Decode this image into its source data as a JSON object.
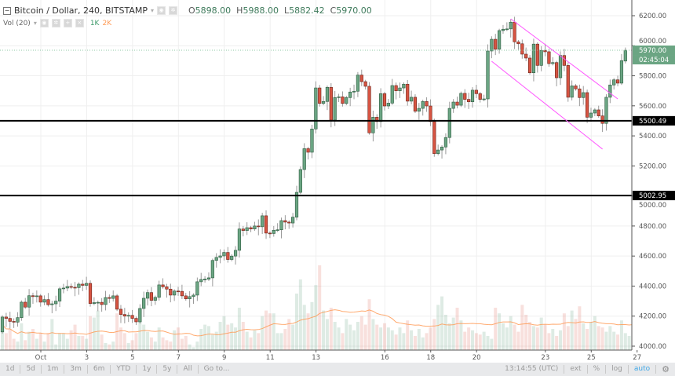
{
  "header": {
    "symbol_title": "Bitcoin / Dollar, 240, BITSTAMP",
    "open_label": "O",
    "open": "5898.00",
    "high_label": "H",
    "high": "5988.00",
    "low_label": "L",
    "low": "5882.42",
    "close_label": "C",
    "close": "5970.00",
    "volume_title": "Vol (20)",
    "volume_value": "1K",
    "volume_ma_value": "2K"
  },
  "toolbar": {
    "ranges": [
      "1d",
      "5d",
      "1m",
      "3m",
      "6m",
      "YTD",
      "1y",
      "5y",
      "All",
      "Go to..."
    ],
    "clock": "13:14:55 (UTC)",
    "ext": "ext",
    "percent": "%",
    "log": "log",
    "auto": "auto"
  },
  "colors": {
    "up": "#6ba583",
    "down": "#d75442",
    "ma": "#ff9a55",
    "channel": "#ff55ff",
    "level": "#000000",
    "last_price": "#6ba583"
  },
  "chart_data": {
    "type": "candlestick",
    "interval": "240",
    "ylim": [
      4000,
      6200
    ],
    "y_ticks": [
      "4000.00",
      "4200.00",
      "4400.00",
      "4600.00",
      "4800.00",
      "5000.00",
      "5200.00",
      "5400.00",
      "5600.00",
      "5800.00",
      "6000.00",
      "6200.00"
    ],
    "x_ticks": [
      {
        "label": "Oct",
        "day": 1
      },
      {
        "label": "3",
        "day": 3
      },
      {
        "label": "5",
        "day": 5
      },
      {
        "label": "7",
        "day": 7
      },
      {
        "label": "9",
        "day": 9
      },
      {
        "label": "11",
        "day": 11
      },
      {
        "label": "13",
        "day": 13
      },
      {
        "label": "16",
        "day": 16
      },
      {
        "label": "18",
        "day": 18
      },
      {
        "label": "20",
        "day": 20
      },
      {
        "label": "23",
        "day": 23
      },
      {
        "label": "25",
        "day": 25
      },
      {
        "label": "27",
        "day": 27
      }
    ],
    "grid": true,
    "open_close": [
      [
        4095,
        4194
      ],
      [
        4194,
        4185
      ],
      [
        4185,
        4165
      ],
      [
        4165,
        4160
      ],
      [
        4160,
        4190
      ],
      [
        4190,
        4293
      ],
      [
        4293,
        4260
      ],
      [
        4260,
        4336
      ],
      [
        4336,
        4330
      ],
      [
        4330,
        4335
      ],
      [
        4335,
        4293
      ],
      [
        4293,
        4310
      ],
      [
        4310,
        4276
      ],
      [
        4276,
        4282
      ],
      [
        4282,
        4300
      ],
      [
        4300,
        4382
      ],
      [
        4382,
        4387
      ],
      [
        4387,
        4397
      ],
      [
        4397,
        4392
      ],
      [
        4392,
        4390
      ],
      [
        4390,
        4413
      ],
      [
        4413,
        4405
      ],
      [
        4405,
        4418
      ],
      [
        4418,
        4284
      ],
      [
        4284,
        4290
      ],
      [
        4290,
        4292
      ],
      [
        4292,
        4277
      ],
      [
        4277,
        4324
      ],
      [
        4324,
        4318
      ],
      [
        4318,
        4335
      ],
      [
        4335,
        4246
      ],
      [
        4246,
        4211
      ],
      [
        4211,
        4200
      ],
      [
        4200,
        4205
      ],
      [
        4205,
        4185
      ],
      [
        4185,
        4162
      ],
      [
        4162,
        4251
      ],
      [
        4251,
        4319
      ],
      [
        4319,
        4357
      ],
      [
        4357,
        4305
      ],
      [
        4305,
        4325
      ],
      [
        4325,
        4408
      ],
      [
        4408,
        4395
      ],
      [
        4395,
        4380
      ],
      [
        4380,
        4340
      ],
      [
        4340,
        4367
      ],
      [
        4367,
        4365
      ],
      [
        4365,
        4335
      ],
      [
        4335,
        4315
      ],
      [
        4315,
        4330
      ],
      [
        4330,
        4340
      ],
      [
        4340,
        4429
      ],
      [
        4429,
        4444
      ],
      [
        4444,
        4446
      ],
      [
        4446,
        4455
      ],
      [
        4455,
        4571
      ],
      [
        4571,
        4591
      ],
      [
        4591,
        4601
      ],
      [
        4601,
        4624
      ],
      [
        4624,
        4577
      ],
      [
        4577,
        4600
      ],
      [
        4600,
        4638
      ],
      [
        4638,
        4780
      ],
      [
        4780,
        4770
      ],
      [
        4770,
        4789
      ],
      [
        4789,
        4780
      ],
      [
        4780,
        4800
      ],
      [
        4800,
        4795
      ],
      [
        4795,
        4868
      ],
      [
        4868,
        4753
      ],
      [
        4753,
        4750
      ],
      [
        4750,
        4772
      ],
      [
        4772,
        4775
      ],
      [
        4775,
        4836
      ],
      [
        4836,
        4826
      ],
      [
        4826,
        4820
      ],
      [
        4820,
        4859
      ],
      [
        4859,
        5024
      ],
      [
        5024,
        5176
      ],
      [
        5176,
        5315
      ],
      [
        5315,
        5291
      ],
      [
        5291,
        5446
      ],
      [
        5446,
        5719
      ],
      [
        5719,
        5616
      ],
      [
        5616,
        5629
      ],
      [
        5629,
        5723
      ],
      [
        5723,
        5505
      ],
      [
        5505,
        5655
      ],
      [
        5655,
        5660
      ],
      [
        5660,
        5616
      ],
      [
        5616,
        5655
      ],
      [
        5655,
        5692
      ],
      [
        5692,
        5697
      ],
      [
        5697,
        5805
      ],
      [
        5805,
        5761
      ],
      [
        5761,
        5730
      ],
      [
        5730,
        5420
      ],
      [
        5420,
        5524
      ],
      [
        5524,
        5495
      ],
      [
        5495,
        5681
      ],
      [
        5681,
        5599
      ],
      [
        5599,
        5618
      ],
      [
        5618,
        5735
      ],
      [
        5735,
        5700
      ],
      [
        5700,
        5719
      ],
      [
        5719,
        5744
      ],
      [
        5744,
        5631
      ],
      [
        5631,
        5657
      ],
      [
        5657,
        5564
      ],
      [
        5564,
        5583
      ],
      [
        5583,
        5629
      ],
      [
        5629,
        5599
      ],
      [
        5599,
        5495
      ],
      [
        5495,
        5282
      ],
      [
        5282,
        5306
      ],
      [
        5306,
        5326
      ],
      [
        5326,
        5389
      ],
      [
        5389,
        5583
      ],
      [
        5583,
        5625
      ],
      [
        5625,
        5604
      ],
      [
        5604,
        5683
      ],
      [
        5683,
        5643
      ],
      [
        5643,
        5627
      ],
      [
        5627,
        5704
      ],
      [
        5704,
        5681
      ],
      [
        5681,
        5643
      ],
      [
        5643,
        5646
      ],
      [
        5646,
        5965
      ],
      [
        5965,
        6043
      ],
      [
        6043,
        5977
      ],
      [
        5977,
        6101
      ],
      [
        6101,
        6110
      ],
      [
        6110,
        6112
      ],
      [
        6112,
        6157
      ],
      [
        6157,
        6026
      ],
      [
        6026,
        6013
      ],
      [
        6013,
        5944
      ],
      [
        5944,
        5918
      ],
      [
        5918,
        5820
      ],
      [
        5820,
        6011
      ],
      [
        6011,
        5869
      ],
      [
        5869,
        5969
      ],
      [
        5969,
        5960
      ],
      [
        5960,
        5881
      ],
      [
        5881,
        5888
      ],
      [
        5888,
        5787
      ],
      [
        5787,
        5935
      ],
      [
        5935,
        5869
      ],
      [
        5869,
        5657
      ],
      [
        5657,
        5733
      ],
      [
        5733,
        5713
      ],
      [
        5713,
        5655
      ],
      [
        5655,
        5688
      ],
      [
        5688,
        5524
      ],
      [
        5524,
        5552
      ],
      [
        5552,
        5573
      ],
      [
        5573,
        5533
      ],
      [
        5533,
        5483
      ],
      [
        5483,
        5657
      ],
      [
        5657,
        5739
      ],
      [
        5739,
        5773
      ],
      [
        5773,
        5751
      ],
      [
        5751,
        5901
      ],
      [
        5898,
        5970
      ]
    ],
    "volume_k": [
      1.8,
      1.2,
      1.5,
      0.8,
      0.6,
      1.9,
      0.7,
      1.3,
      1.5,
      0.8,
      1.2,
      0.6,
      1.2,
      2.2,
      0.4,
      1.2,
      1.2,
      0.8,
      1.4,
      1.8,
      1.0,
      1.0,
      0.8,
      2.4,
      2.3,
      2.8,
      1.1,
      0.5,
      0.4,
      0.6,
      2.6,
      1.6,
      1.2,
      0.5,
      0.7,
      1.2,
      2.1,
      1.8,
      1.3,
      0.9,
      0.6,
      1.6,
      0.9,
      0.7,
      0.6,
      1.4,
      1.6,
      0.8,
      1.0,
      0.4,
      0.2,
      0.6,
      1.5,
      1.8,
      1.7,
      1.1,
      1.3,
      2.0,
      2.4,
      1.8,
      1.9,
      1.6,
      3.0,
      2.0,
      1.3,
      0.9,
      1.4,
      1.2,
      2.4,
      2.8,
      2.6,
      2.6,
      1.2,
      1.2,
      1.5,
      2.2,
      1.8,
      4.0,
      5.0,
      3.2,
      2.6,
      3.4,
      4.6,
      6.0,
      2.8,
      2.2,
      3.0,
      2.0,
      1.6,
      1.2,
      2.2,
      1.8,
      1.4,
      2.0,
      2.4,
      1.8,
      3.6,
      2.2,
      1.8,
      1.6,
      1.9,
      1.6,
      1.4,
      1.1,
      1.6,
      1.2,
      2.1,
      1.4,
      1.0,
      1.5,
      0.9,
      1.2,
      1.6,
      2.2,
      3.2,
      3.8,
      2.5,
      1.9,
      2.3,
      3.0,
      2.1,
      1.3,
      1.6,
      1.4,
      1.2,
      1.1,
      1.3,
      1.0,
      0.8,
      3.0,
      2.6,
      1.9,
      1.6,
      2.4,
      1.8,
      1.3,
      3.2,
      2.5,
      2.0,
      1.7,
      1.6,
      2.3,
      1.8,
      1.2,
      1.5,
      1.0,
      1.4,
      2.6,
      1.7,
      2.8,
      2.2,
      3.1,
      1.9,
      1.5,
      2.0,
      2.4,
      1.7,
      1.6,
      1.3,
      1.7,
      1.3,
      1.1,
      2.1,
      1.2,
      1.0,
      1.5,
      1.2,
      0.9,
      1.0
    ],
    "volume_ma_period": 20,
    "horizontal_levels": [
      {
        "price": 5500.49,
        "label": "5500.49"
      },
      {
        "price": 5002.95,
        "label": "5002.95"
      }
    ],
    "channel_lines": [
      {
        "from": {
          "time": "Oct 21 12:00",
          "price": 6179
        },
        "to": {
          "time": "Oct 26 04:00",
          "price": 5646
        }
      },
      {
        "from": {
          "time": "Oct 20 16:00",
          "price": 5897
        },
        "to": {
          "time": "Oct 25 12:00",
          "price": 5312
        }
      }
    ],
    "last_price": {
      "price": 5970.0,
      "label": "5970.00",
      "countdown": "02:45:04"
    }
  }
}
